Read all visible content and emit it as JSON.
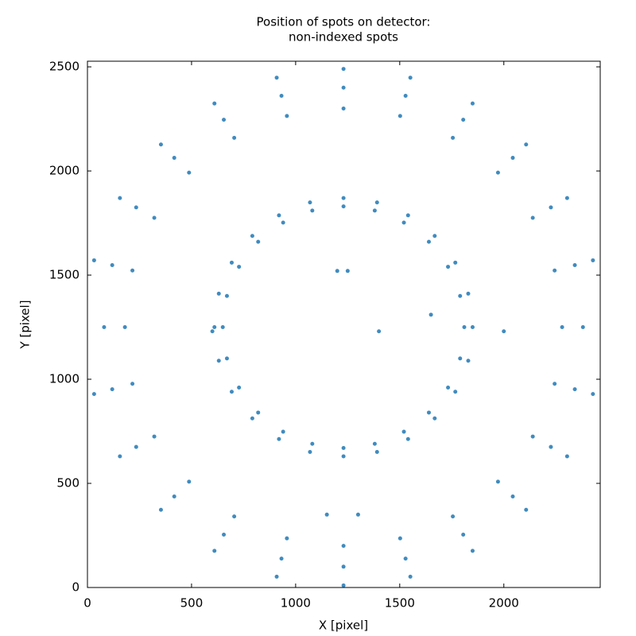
{
  "chart_data": {
    "type": "scatter",
    "title": [
      "Position of spots on detector:",
      "non-indexed spots"
    ],
    "x_label": "X [pixel]",
    "y_label": "Y [pixel]",
    "xlim": [
      0,
      2463
    ],
    "ylim": [
      0,
      2527
    ],
    "xticks": [
      0,
      500,
      1000,
      1500,
      2000
    ],
    "yticks": [
      0,
      500,
      1000,
      1500,
      2000,
      2500
    ],
    "grid": false,
    "series": [
      {
        "color": "#1f77b4",
        "x": [
          1810,
          1790,
          1732,
          1640,
          1520,
          1380,
          1230,
          1080,
          940,
          820,
          728,
          670,
          650,
          670,
          728,
          820,
          940,
          1080,
          1230,
          1380,
          1520,
          1640,
          1732,
          1790,
          1850,
          1829,
          1767,
          1668,
          1540,
          1391,
          1230,
          1069,
          920,
          792,
          693,
          631,
          610,
          631,
          693,
          792,
          920,
          1069,
          1230,
          1391,
          1540,
          1668,
          1767,
          1829,
          2280,
          2244,
          2139,
          1972,
          1755,
          1502,
          1230,
          958,
          705,
          488,
          321,
          216,
          180,
          216,
          321,
          488,
          705,
          958,
          1230,
          1502,
          1755,
          1972,
          2139,
          2244,
          2380,
          2341,
          2226,
          2043,
          1805,
          1528,
          1230,
          932,
          655,
          417,
          234,
          119,
          80,
          119,
          234,
          417,
          655,
          932,
          1230,
          1528,
          1805,
          2043,
          2226,
          2341,
          2428,
          2304,
          2107,
          1850,
          1551,
          1230,
          909,
          610,
          353,
          156,
          32,
          32,
          156,
          353,
          610,
          909,
          1230,
          1551,
          1850,
          2107,
          2304,
          2428,
          1200,
          1250,
          1650,
          1300,
          1150,
          1400,
          600,
          2000
        ],
        "y": [
          1250,
          1400,
          1540,
          1660,
          1752,
          1810,
          1830,
          1810,
          1752,
          1660,
          1540,
          1400,
          1250,
          1100,
          960,
          840,
          748,
          690,
          670,
          690,
          748,
          840,
          960,
          1100,
          1250,
          1411,
          1560,
          1688,
          1787,
          1849,
          1870,
          1849,
          1787,
          1688,
          1560,
          1411,
          1250,
          1089,
          940,
          812,
          713,
          651,
          630,
          651,
          713,
          812,
          940,
          1089,
          1250,
          1522,
          1775,
          1992,
          2159,
          2264,
          2300,
          2264,
          2159,
          1992,
          1775,
          1522,
          1250,
          978,
          725,
          508,
          341,
          236,
          200,
          236,
          341,
          508,
          725,
          978,
          1250,
          1548,
          1825,
          2063,
          2246,
          2361,
          2400,
          2361,
          2246,
          2063,
          1825,
          1548,
          1250,
          952,
          675,
          437,
          254,
          139,
          100,
          139,
          254,
          437,
          675,
          952,
          1571,
          1870,
          2127,
          2324,
          2448,
          2490,
          2448,
          2324,
          2127,
          1870,
          1571,
          929,
          630,
          373,
          176,
          52,
          10,
          52,
          176,
          373,
          630,
          929,
          1520,
          1520,
          1310,
          350,
          350,
          1230,
          1230,
          1230
        ]
      }
    ]
  }
}
